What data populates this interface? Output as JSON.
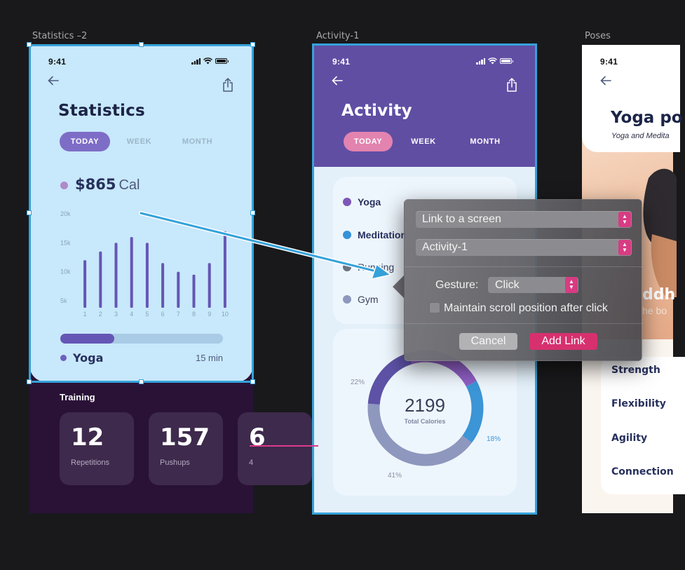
{
  "artboards": {
    "frame1_label": "Statistics –2",
    "frame2_label": "Activity-1",
    "frame3_label": "Poses"
  },
  "statistics": {
    "time": "9:41",
    "title": "Statistics",
    "tabs": [
      "TODAY",
      "WEEK",
      "MONTH"
    ],
    "calories_value": "$865",
    "calories_unit": "Cal",
    "activity_progress_fraction": 0.33,
    "activity_name": "Yoga",
    "activity_duration": "15 min",
    "training_title": "Training",
    "training_cards": [
      {
        "value": "12",
        "label": "Repetitions"
      },
      {
        "value": "157",
        "label": "Pushups"
      },
      {
        "value": "6",
        "label": "4"
      }
    ]
  },
  "chart_data": {
    "type": "bar",
    "title": "",
    "xlabel": "",
    "ylabel": "",
    "categories": [
      "1",
      "2",
      "3",
      "4",
      "5",
      "6",
      "7",
      "8",
      "9",
      "10"
    ],
    "values": [
      12.0,
      13.5,
      15.0,
      16.0,
      15.0,
      11.5,
      10.0,
      9.5,
      11.5,
      17.0
    ],
    "ylim": [
      5000,
      20000
    ],
    "yticks": [
      "20k",
      "15k",
      "10k",
      "5k"
    ],
    "ytick_values": [
      20,
      15,
      10,
      5
    ],
    "values_unit_thousands": true,
    "bar_color": "#6556b5",
    "grid": false
  },
  "activity": {
    "time": "9:41",
    "title": "Activity",
    "tabs": [
      "TODAY",
      "WEEK",
      "MONTH"
    ],
    "list": [
      {
        "label": "Yoga",
        "color": "#7e56b8",
        "bold": true
      },
      {
        "label": "Meditation",
        "color": "#3592d8",
        "bold": true
      },
      {
        "label": "Running",
        "color": "#6b7280",
        "bold": false
      },
      {
        "label": "Gym",
        "color": "#8e97bd",
        "bold": false
      }
    ],
    "donut": {
      "total": "2199",
      "total_label": "Total Calories",
      "segments": [
        {
          "label": "22%",
          "value": 22,
          "color": "#8f5ec4"
        },
        {
          "label": "18%",
          "value": 18,
          "color": "#3b95d6"
        },
        {
          "label": "41%",
          "value": 41,
          "color": "#8e97bd"
        },
        {
          "label": "",
          "value": 19,
          "color": "#5d52a6"
        }
      ]
    }
  },
  "poses": {
    "time": "9:41",
    "title": "Yoga po",
    "subtitle": "Yoga and Medita",
    "overlay_title": "ddh",
    "overlay_sub": "he bo",
    "items": [
      "Strength",
      "Flexibility",
      "Agility",
      "Connection"
    ]
  },
  "popover": {
    "link_target_type": "Link to a screen",
    "link_target_screen": "Activity-1",
    "gesture_label": "Gesture:",
    "gesture_value": "Click",
    "maintain_scroll_label": "Maintain scroll position after click",
    "maintain_scroll_checked": false,
    "cancel_label": "Cancel",
    "add_label": "Add Link",
    "colors": {
      "accent": "#d6306f",
      "link_arrow": "#35a2da",
      "connector": "#de3a8a"
    }
  }
}
